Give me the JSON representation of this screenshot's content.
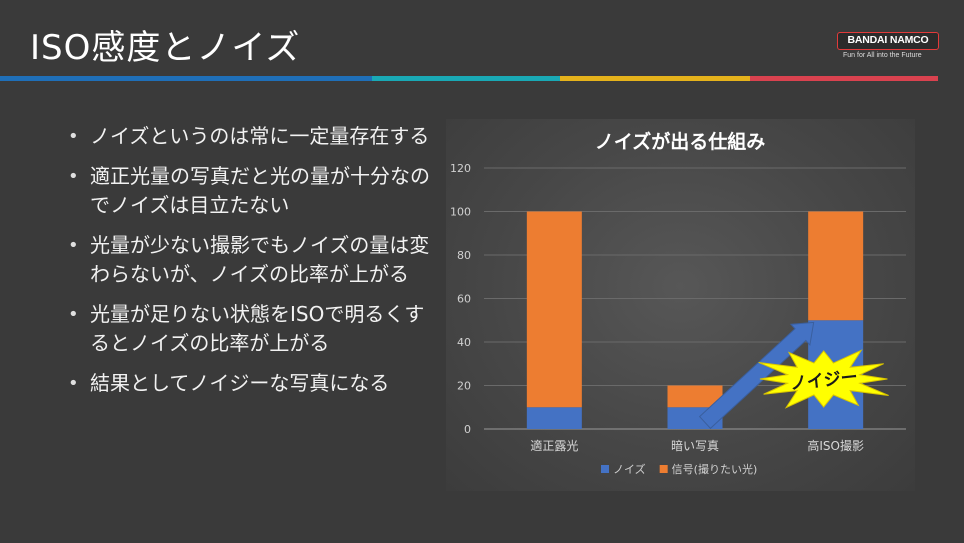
{
  "slide": {
    "title": "ISO感度とノイズ",
    "logo_text": "BANDAI NAMCO",
    "logo_tagline": "Fun for All into the Future"
  },
  "colors": {
    "background": "#3a3a3a",
    "stripe": [
      "#1f6fb8",
      "#19a9b5",
      "#e5b21b",
      "#d9424f"
    ],
    "noise_series": "#4472c4",
    "signal_series": "#ed7d31",
    "burst": "#ffff00",
    "arrow": "#4472c4"
  },
  "bullets": [
    "ノイズというのは常に一定量存在する",
    "適正光量の写真だと光の量が十分なのでノイズは目立たない",
    "光量が少ない撮影でもノイズの量は変わらないが、ノイズの比率が上がる",
    "光量が足りない状態をISOで明るくするとノイズの比率が上がる",
    "結果としてノイジーな写真になる"
  ],
  "chart_data": {
    "type": "bar",
    "stacked": true,
    "title": "ノイズが出る仕組み",
    "categories": [
      "適正露光",
      "暗い写真",
      "高ISO撮影"
    ],
    "series": [
      {
        "name": "ノイズ",
        "values": [
          10,
          10,
          50
        ],
        "color": "#4472c4"
      },
      {
        "name": "信号(撮りたい光)",
        "values": [
          90,
          10,
          50
        ],
        "color": "#ed7d31"
      }
    ],
    "ylim": [
      0,
      120
    ],
    "yticks": [
      0,
      20,
      40,
      60,
      80,
      100,
      120
    ],
    "grid": true,
    "legend": "bottom",
    "annotation": {
      "text": "ノイジー",
      "style": "yellow burst",
      "target_category": "高ISO撮影"
    }
  }
}
